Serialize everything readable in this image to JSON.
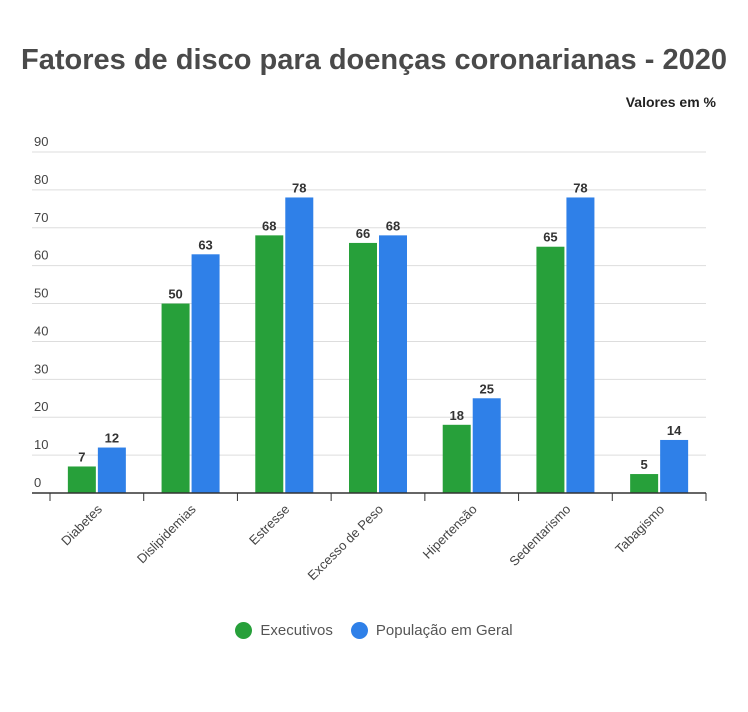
{
  "chart_data": {
    "type": "bar",
    "title": "Fatores de disco para doenças coronarianas - 2020",
    "unit_note": "Valores em %",
    "xlabel": "",
    "ylabel": "",
    "ylim": [
      0,
      90
    ],
    "yticks": [
      0,
      10,
      20,
      30,
      40,
      50,
      60,
      70,
      80,
      90
    ],
    "grid": true,
    "legend_position": "bottom",
    "categories": [
      "Diabetes",
      "Dislipidemias",
      "Estresse",
      "Excesso de Peso",
      "Hipertensão",
      "Sedentarismo",
      "Tabagismo"
    ],
    "series": [
      {
        "name": "Executivos",
        "color": "#27a03a",
        "values": [
          7,
          50,
          68,
          66,
          18,
          65,
          5
        ]
      },
      {
        "name": "População em Geral",
        "color": "#2f80e8",
        "values": [
          12,
          63,
          78,
          68,
          25,
          78,
          14
        ]
      }
    ]
  }
}
